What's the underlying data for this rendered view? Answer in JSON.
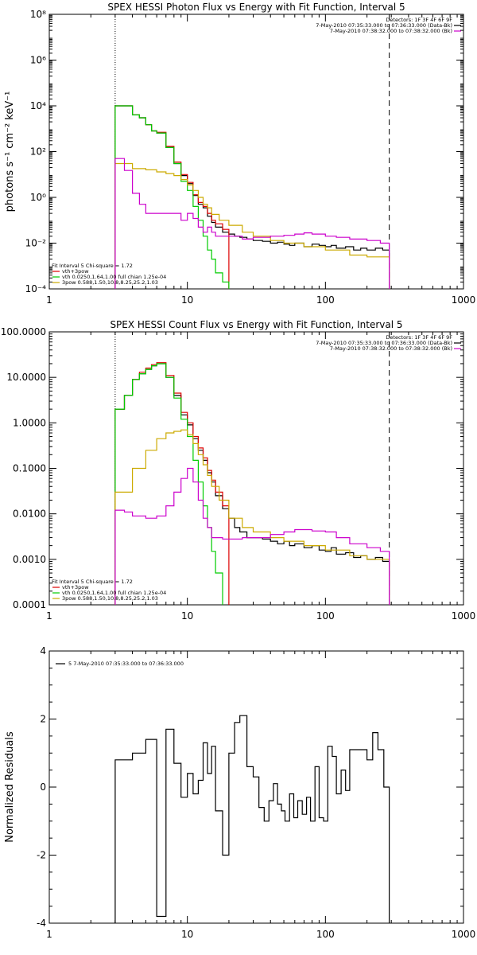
{
  "chart_data": [
    {
      "type": "line",
      "title": "SPEX HESSI Photon Flux vs Energy with Fit Function, Interval 5",
      "xlabel": "",
      "ylabel": "photons s⁻¹ cm⁻² keV⁻¹",
      "xscale": "log",
      "yscale": "log",
      "xlim": [
        1,
        1000
      ],
      "ylim": [
        0.0001,
        100000000
      ],
      "xticks": [
        1,
        10,
        100,
        1000
      ],
      "xtick_labels": [
        "1",
        "10",
        "100",
        "1000"
      ],
      "yticks": [
        0.0001,
        0.01,
        1,
        100,
        10000,
        1000000,
        100000000
      ],
      "ytick_labels": [
        "10⁻⁴",
        "10⁻²",
        "10⁰",
        "10²",
        "10⁴",
        "10⁶",
        "10⁸"
      ],
      "vlines": [
        {
          "x": 3,
          "style": "dotted",
          "color": "#000000"
        },
        {
          "x": 290,
          "style": "dashed",
          "color": "#000000"
        }
      ],
      "legend_top_right": [
        {
          "text": "Detectors: 1F 3F 4F 6F 9F",
          "color": ""
        },
        {
          "text": "7-May-2010 07:35:33.000 to 07:36:33.000 (Data-Bk)",
          "color": "#000000"
        },
        {
          "text": "7-May-2010 07:38:32.000 to 07:38:32.000 (Bk)",
          "color": "#cc00cc"
        }
      ],
      "legend_bottom_left": [
        {
          "text": "Fit Interval 5   Chi-square = 1.72",
          "color": ""
        },
        {
          "text": "vth+3pow",
          "color": "#dd0000"
        },
        {
          "text": "vth 0.0250,1.64,1.00  full chian 1.25e-04",
          "color": "#00cc00"
        },
        {
          "text": "3pow 0.588,1.50,10.8,8.25,25.2,1.03",
          "color": "#ccaa00"
        }
      ],
      "series": [
        {
          "name": "Data-Bk",
          "color": "#000000",
          "x": [
            3,
            3.5,
            4,
            4.5,
            5,
            5.5,
            6,
            7,
            8,
            9,
            10,
            11,
            12,
            13,
            14,
            15,
            16,
            18,
            20,
            22,
            24,
            27,
            30,
            35,
            40,
            45,
            50,
            55,
            60,
            70,
            80,
            90,
            100,
            110,
            120,
            140,
            160,
            180,
            200,
            230,
            260,
            290
          ],
          "y": [
            10000,
            10000,
            4000,
            3000,
            1500,
            800,
            650,
            150,
            30,
            9,
            4,
            1.2,
            0.5,
            0.35,
            0.15,
            0.08,
            0.05,
            0.03,
            0.025,
            0.02,
            0.018,
            0.015,
            0.013,
            0.012,
            0.01,
            0.011,
            0.009,
            0.008,
            0.01,
            0.007,
            0.009,
            0.008,
            0.007,
            0.008,
            0.006,
            0.007,
            0.005,
            0.006,
            0.005,
            0.006,
            0.005,
            0.005
          ]
        },
        {
          "name": "vth+3pow",
          "color": "#dd0000",
          "x": [
            3,
            3.5,
            4,
            4.5,
            5,
            5.5,
            6,
            7,
            8,
            9,
            10,
            11,
            12,
            13,
            14,
            15,
            16,
            18,
            20
          ],
          "y": [
            10000,
            10000,
            4000,
            3000,
            1500,
            800,
            700,
            170,
            35,
            10,
            4.5,
            1.3,
            0.6,
            0.4,
            0.2,
            0.1,
            0.07,
            0.04,
            0.03
          ]
        },
        {
          "name": "vth",
          "color": "#00cc00",
          "x": [
            3,
            3.5,
            4,
            4.5,
            5,
            5.5,
            6,
            7,
            8,
            9,
            10,
            11,
            12,
            13,
            14,
            15,
            16,
            18,
            20
          ],
          "y": [
            10000,
            10000,
            4000,
            3000,
            1500,
            800,
            650,
            150,
            30,
            5,
            2,
            0.4,
            0.1,
            0.02,
            0.005,
            0.002,
            0.0005,
            0.0002,
            0.0001
          ]
        },
        {
          "name": "3pow",
          "color": "#ccaa00",
          "x": [
            3,
            4,
            5,
            6,
            7,
            8,
            9,
            10,
            11,
            12,
            13,
            14,
            15,
            17,
            20,
            25,
            30,
            40,
            50,
            70,
            100,
            150,
            200,
            290
          ],
          "y": [
            30,
            18,
            16,
            13,
            11,
            9,
            6,
            3.5,
            2,
            1,
            0.5,
            0.35,
            0.18,
            0.1,
            0.06,
            0.03,
            0.02,
            0.013,
            0.01,
            0.007,
            0.005,
            0.003,
            0.0025,
            0.002
          ]
        },
        {
          "name": "Bk",
          "color": "#cc00cc",
          "x": [
            3,
            3.5,
            4,
            4.5,
            5,
            6,
            7,
            8,
            9,
            10,
            11,
            12,
            13,
            14,
            15,
            16,
            18,
            20,
            25,
            30,
            40,
            50,
            60,
            70,
            80,
            100,
            120,
            150,
            200,
            250,
            290
          ],
          "y": [
            50,
            15,
            1.5,
            0.5,
            0.2,
            0.2,
            0.2,
            0.2,
            0.1,
            0.2,
            0.12,
            0.05,
            0.03,
            0.05,
            0.03,
            0.02,
            0.02,
            0.02,
            0.015,
            0.018,
            0.02,
            0.022,
            0.025,
            0.028,
            0.025,
            0.02,
            0.018,
            0.015,
            0.013,
            0.01,
            0.008
          ]
        }
      ]
    },
    {
      "type": "line",
      "title": "SPEX HESSI Count Flux vs Energy with Fit Function, Interval 5",
      "xlabel": "",
      "ylabel": "",
      "xscale": "log",
      "yscale": "log",
      "xlim": [
        1,
        1000
      ],
      "ylim": [
        0.0001,
        100
      ],
      "xticks": [
        1,
        10,
        100,
        1000
      ],
      "xtick_labels": [
        "1",
        "10",
        "100",
        "1000"
      ],
      "yticks": [
        0.0001,
        0.001,
        0.01,
        0.1,
        1,
        10,
        100
      ],
      "ytick_labels": [
        "0.0001",
        "0.0010",
        "0.0100",
        "0.1000",
        "1.0000",
        "10.0000",
        "100.0000"
      ],
      "vlines": [
        {
          "x": 3,
          "style": "dotted",
          "color": "#000000"
        },
        {
          "x": 290,
          "style": "dashed",
          "color": "#000000"
        }
      ],
      "legend_top_right": [
        {
          "text": "Detectors: 1F 3F 4F 6F 9F",
          "color": ""
        },
        {
          "text": "7-May-2010 07:35:33.000 to 07:36:33.000 (Data-Bk)",
          "color": "#000000"
        },
        {
          "text": "7-May-2010 07:38:32.000 to 07:38:32.000 (Bk)",
          "color": "#cc00cc"
        }
      ],
      "legend_bottom_left": [
        {
          "text": "Fit Interval 5   Chi-square = 1.72",
          "color": ""
        },
        {
          "text": "vth+3pow",
          "color": "#dd0000"
        },
        {
          "text": "vth 0.0250,1.64,1.00  full chian 1.25e-04",
          "color": "#00cc00"
        },
        {
          "text": "3pow 0.588,1.50,10.8,8.25,25.2,1.03",
          "color": "#ccaa00"
        }
      ],
      "series": [
        {
          "name": "Data-Bk",
          "color": "#000000",
          "x": [
            3,
            3.5,
            4,
            4.5,
            5,
            5.5,
            6,
            7,
            8,
            9,
            10,
            11,
            12,
            13,
            14,
            15,
            16,
            18,
            20,
            22,
            24,
            27,
            30,
            35,
            40,
            45,
            50,
            55,
            60,
            70,
            80,
            90,
            100,
            110,
            120,
            140,
            160,
            180,
            200,
            230,
            260,
            290
          ],
          "y": [
            2,
            4,
            9,
            12,
            15,
            18,
            20,
            10,
            4,
            1.5,
            0.9,
            0.45,
            0.25,
            0.15,
            0.08,
            0.05,
            0.025,
            0.013,
            0.008,
            0.005,
            0.004,
            0.003,
            0.003,
            0.0028,
            0.0025,
            0.0022,
            0.0025,
            0.002,
            0.0022,
            0.0018,
            0.002,
            0.0016,
            0.0015,
            0.0018,
            0.0013,
            0.0014,
            0.0011,
            0.0012,
            0.001,
            0.0011,
            0.0009,
            0.0008
          ]
        },
        {
          "name": "vth+3pow",
          "color": "#dd0000",
          "x": [
            3,
            3.5,
            4,
            4.5,
            5,
            5.5,
            6,
            7,
            8,
            9,
            10,
            11,
            12,
            13,
            14,
            15,
            16,
            18,
            20
          ],
          "y": [
            2,
            4,
            9,
            13,
            16,
            19,
            21,
            11,
            4.5,
            1.7,
            1,
            0.5,
            0.28,
            0.17,
            0.09,
            0.055,
            0.03,
            0.015,
            0.009
          ]
        },
        {
          "name": "vth",
          "color": "#00cc00",
          "x": [
            3,
            3.5,
            4,
            4.5,
            5,
            5.5,
            6,
            7,
            8,
            9,
            10,
            11,
            12,
            13,
            14,
            15,
            16,
            18
          ],
          "y": [
            2,
            4,
            9,
            12,
            15,
            18,
            20,
            10,
            3.5,
            1.2,
            0.5,
            0.15,
            0.05,
            0.015,
            0.005,
            0.0015,
            0.0005,
            0.0001
          ]
        },
        {
          "name": "3pow",
          "color": "#ccaa00",
          "x": [
            3,
            4,
            5,
            6,
            7,
            8,
            9,
            10,
            11,
            12,
            13,
            14,
            15,
            17,
            20,
            25,
            30,
            40,
            50,
            70,
            100,
            150,
            200,
            290
          ],
          "y": [
            0.03,
            0.1,
            0.25,
            0.45,
            0.6,
            0.65,
            0.7,
            0.55,
            0.35,
            0.2,
            0.12,
            0.07,
            0.04,
            0.02,
            0.008,
            0.005,
            0.004,
            0.003,
            0.0025,
            0.002,
            0.0016,
            0.0012,
            0.001,
            0.0005
          ]
        },
        {
          "name": "Bk",
          "color": "#cc00cc",
          "x": [
            3,
            3.5,
            4,
            4.5,
            5,
            6,
            7,
            8,
            9,
            10,
            11,
            12,
            13,
            14,
            15,
            16,
            18,
            20,
            25,
            30,
            40,
            50,
            60,
            70,
            80,
            100,
            120,
            150,
            200,
            250,
            290
          ],
          "y": [
            0.012,
            0.011,
            0.009,
            0.009,
            0.008,
            0.009,
            0.015,
            0.03,
            0.06,
            0.1,
            0.05,
            0.02,
            0.008,
            0.005,
            0.003,
            0.003,
            0.0028,
            0.0028,
            0.003,
            0.003,
            0.0035,
            0.004,
            0.0045,
            0.0045,
            0.0042,
            0.004,
            0.003,
            0.0022,
            0.0018,
            0.0015,
            0.0012
          ]
        }
      ]
    },
    {
      "type": "line",
      "title": "",
      "xlabel": "",
      "ylabel": "Normalized Residuals",
      "xscale": "log",
      "yscale": "linear",
      "xlim": [
        1,
        1000
      ],
      "ylim": [
        -4,
        4
      ],
      "xticks": [
        1,
        10,
        100,
        1000
      ],
      "xtick_labels": [
        "1",
        "10",
        "100",
        "1000"
      ],
      "yticks": [
        -4,
        -2,
        0,
        2,
        4
      ],
      "ytick_labels": [
        "-4",
        "-2",
        "0",
        "2",
        "4"
      ],
      "legend_top_left": [
        {
          "text": "5  7-May-2010 07:35:33.000 to 07:36:33.000",
          "color": "#000000"
        }
      ],
      "series": [
        {
          "name": "5  7-May-2010 07:35:33.000 to 07:36:33.000",
          "color": "#000000",
          "x": [
            3,
            4,
            5,
            6,
            7,
            8,
            9,
            10,
            11,
            12,
            13,
            14,
            15,
            16,
            18,
            20,
            22,
            24,
            27,
            30,
            33,
            36,
            39,
            42,
            45,
            48,
            51,
            55,
            59,
            63,
            68,
            73,
            78,
            84,
            90,
            97,
            104,
            112,
            120,
            130,
            140,
            150,
            165,
            180,
            200,
            220,
            240,
            265,
            290
          ],
          "y": [
            0.8,
            1.0,
            1.4,
            -3.8,
            1.7,
            0.7,
            -0.3,
            0.4,
            -0.2,
            0.2,
            1.3,
            0.4,
            1.2,
            -0.7,
            -2.0,
            1.0,
            1.9,
            2.1,
            0.6,
            0.3,
            -0.6,
            -1.0,
            -0.4,
            0.1,
            -0.5,
            -0.7,
            -1.0,
            -0.2,
            -0.9,
            -0.4,
            -0.8,
            -0.3,
            -1.0,
            0.6,
            -0.9,
            -1.0,
            1.2,
            0.9,
            -0.2,
            0.5,
            -0.1,
            1.1,
            1.1,
            1.1,
            0.8,
            1.6,
            1.1,
            0.0,
            0.0
          ]
        }
      ]
    }
  ]
}
